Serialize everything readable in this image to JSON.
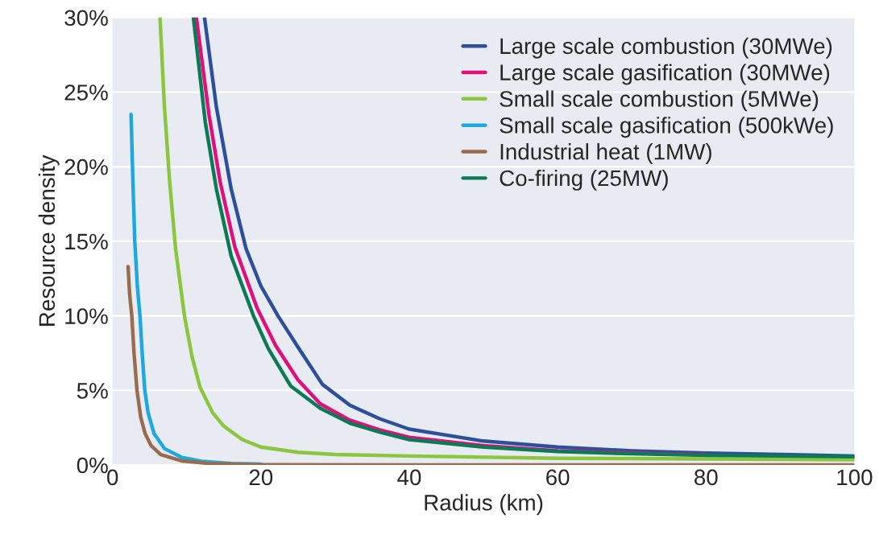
{
  "chart_data": {
    "type": "line",
    "xlabel": "Radius (km)",
    "ylabel": "Resource density",
    "xlim": [
      0,
      100
    ],
    "xticks": [
      0,
      20,
      40,
      60,
      80,
      100
    ],
    "ylim": [
      0,
      30
    ],
    "yticks": [
      {
        "value": 0,
        "label": "0%"
      },
      {
        "value": 5,
        "label": "5%"
      },
      {
        "value": 10,
        "label": "10%"
      },
      {
        "value": 15,
        "label": "15%"
      },
      {
        "value": 20,
        "label": "20%"
      },
      {
        "value": 25,
        "label": "25%"
      },
      {
        "value": 30,
        "label": "30%"
      }
    ],
    "grid": "y",
    "legend": "top right",
    "marker": "none",
    "line_style": "solid",
    "series": [
      {
        "name": "Large scale combustion (30MWe)",
        "color": "#2e4f9c",
        "x": [
          12.4,
          14,
          16,
          18,
          20,
          22.3,
          25,
          28.3,
          32,
          36,
          40,
          50,
          60,
          70,
          80,
          90,
          100
        ],
        "values": [
          30,
          24,
          18.5,
          14.5,
          12,
          10,
          7.9,
          5.4,
          4.0,
          3.1,
          2.4,
          1.6,
          1.2,
          0.95,
          0.8,
          0.7,
          0.6
        ]
      },
      {
        "name": "Large scale gasification (30MWe)",
        "color": "#e0107a",
        "x": [
          11.3,
          13,
          14.5,
          16.5,
          19.5,
          22,
          25,
          28,
          32,
          36,
          40,
          50,
          60,
          70,
          80
        ],
        "values": [
          30,
          23.5,
          19,
          14.6,
          10.5,
          8,
          5.7,
          4.1,
          3.0,
          2.35,
          1.85,
          1.3,
          0.95,
          0.8,
          0.68
        ]
      },
      {
        "name": "Small scale combustion (5MWe)",
        "color": "#8cc63f",
        "x": [
          6.4,
          7,
          7.7,
          8.5,
          9.7,
          10.7,
          11.8,
          13.5,
          15,
          17.5,
          20,
          25,
          30,
          40,
          60,
          80,
          100
        ],
        "values": [
          30,
          24,
          19,
          14.5,
          10,
          7.3,
          5.2,
          3.5,
          2.6,
          1.7,
          1.2,
          0.85,
          0.7,
          0.6,
          0.45,
          0.4,
          0.35
        ]
      },
      {
        "name": "Small scale gasification (500kWe)",
        "color": "#1ea8e0",
        "x": [
          2.5,
          2.75,
          3.0,
          3.35,
          3.7,
          4.0,
          4.35,
          4.8,
          5.6,
          7,
          9.35,
          12,
          16,
          20
        ],
        "values": [
          23.5,
          19,
          15,
          12,
          10,
          7.5,
          5,
          3.5,
          2.1,
          1.1,
          0.5,
          0.25,
          0.1,
          0.05
        ]
      },
      {
        "name": "Industrial heat (1MW)",
        "color": "#9a6b4f",
        "x": [
          2.1,
          2.3,
          2.6,
          2.9,
          3.3,
          3.8,
          4.4,
          5.2,
          6.5,
          9.3,
          13,
          20,
          40,
          100
        ],
        "values": [
          13.3,
          11.5,
          10,
          7.5,
          5,
          3.2,
          2.1,
          1.3,
          0.7,
          0.27,
          0.1,
          0.02,
          0,
          0
        ]
      },
      {
        "name": "Co-firing (25MW)",
        "color": "#0b7a55",
        "x": [
          10.9,
          12.5,
          14,
          16,
          19,
          21,
          24,
          28,
          32,
          36,
          40,
          50,
          60,
          70,
          80,
          90,
          100
        ],
        "values": [
          30,
          23,
          18.5,
          14,
          10,
          7.8,
          5.3,
          3.8,
          2.8,
          2.2,
          1.7,
          1.2,
          0.9,
          0.75,
          0.65,
          0.6,
          0.55
        ]
      }
    ]
  }
}
